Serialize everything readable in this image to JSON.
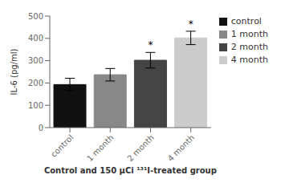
{
  "chart_data": {
    "type": "bar",
    "categories": [
      "control",
      "1 month",
      "2 month",
      "4 month"
    ],
    "values": [
      193,
      237,
      302,
      402
    ],
    "errors": [
      28,
      28,
      35,
      30
    ],
    "colors": [
      "#111111",
      "#888888",
      "#444444",
      "#cccccc"
    ],
    "ylabel": "IL-6 (pg/ml)",
    "xlabel": "Control and 150 μCi ¹³¹I-treated group",
    "ylim": [
      0,
      500
    ],
    "yticks": [
      0,
      100,
      200,
      300,
      400,
      500
    ],
    "grid": false,
    "legend": "right",
    "annotations": [
      {
        "category": "2 month",
        "text": "*"
      },
      {
        "category": "4 month",
        "text": "*"
      }
    ]
  }
}
